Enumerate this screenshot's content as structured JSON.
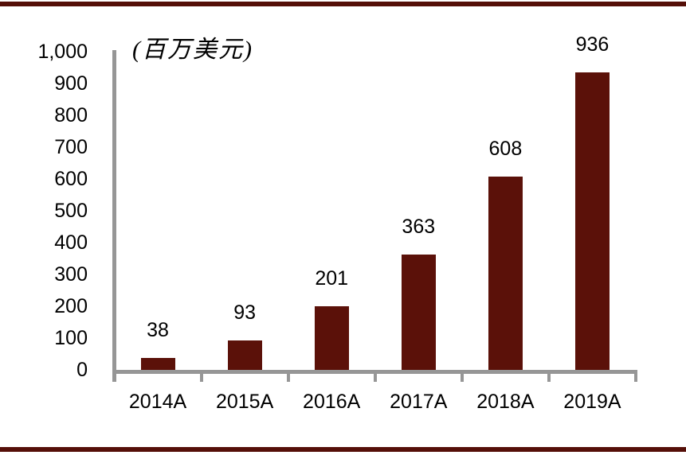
{
  "chart_data": {
    "type": "bar",
    "title": "",
    "unit_label": "(百万美元)",
    "categories": [
      "2014A",
      "2015A",
      "2016A",
      "2017A",
      "2018A",
      "2019A"
    ],
    "values": [
      38,
      93,
      201,
      363,
      608,
      936
    ],
    "xlabel": "",
    "ylabel": "",
    "ylim": [
      0,
      1000
    ],
    "ytick_step": 100,
    "ytick_labels": [
      "0",
      "100",
      "200",
      "300",
      "400",
      "500",
      "600",
      "700",
      "800",
      "900",
      "1,000"
    ],
    "grid": false,
    "legend_position": "none",
    "colors": {
      "bar": "#5B1109",
      "rule": "#550F08",
      "axis": "#969696",
      "text": "#000000"
    }
  }
}
